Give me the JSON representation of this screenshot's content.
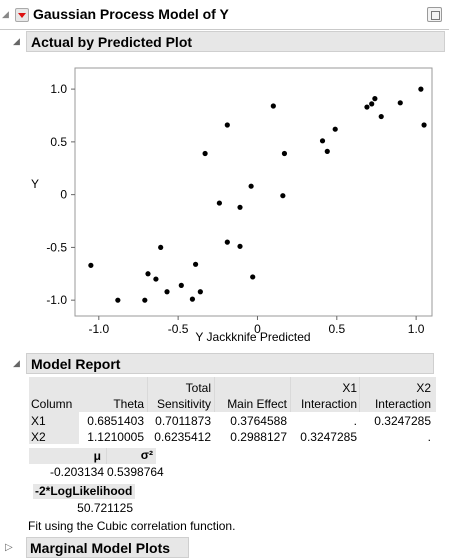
{
  "window": {
    "title": "Gaussian Process Model of Y"
  },
  "sections": {
    "actual_plot": "Actual by Predicted Plot",
    "model_report": "Model Report",
    "marginal": "Marginal Model Plots"
  },
  "chart_data": {
    "type": "scatter",
    "title": "",
    "xlabel": "Y Jackknife Predicted",
    "ylabel": "Y",
    "xlim": [
      -1.15,
      1.1
    ],
    "ylim": [
      -1.15,
      1.2
    ],
    "x_ticks": [
      "-1.0",
      "-0.5",
      "0",
      "0.5",
      "1.0"
    ],
    "y_ticks": [
      "1.0",
      "0.5",
      "0",
      "-0.5",
      "-1.0"
    ],
    "x_tick_values": [
      -1.0,
      -0.5,
      0,
      0.5,
      1.0
    ],
    "y_tick_values": [
      1.0,
      0.5,
      0,
      -0.5,
      -1.0
    ],
    "points": [
      [
        -1.05,
        -0.67
      ],
      [
        -0.88,
        -1.0
      ],
      [
        -0.71,
        -1.0
      ],
      [
        -0.69,
        -0.75
      ],
      [
        -0.64,
        -0.8
      ],
      [
        -0.61,
        -0.5
      ],
      [
        -0.57,
        -0.92
      ],
      [
        -0.48,
        -0.86
      ],
      [
        -0.41,
        -0.99
      ],
      [
        -0.39,
        -0.66
      ],
      [
        -0.36,
        -0.92
      ],
      [
        -0.33,
        0.39
      ],
      [
        -0.24,
        -0.08
      ],
      [
        -0.19,
        0.66
      ],
      [
        -0.19,
        -0.45
      ],
      [
        -0.11,
        -0.12
      ],
      [
        -0.11,
        -0.49
      ],
      [
        -0.04,
        0.08
      ],
      [
        -0.03,
        -0.78
      ],
      [
        0.1,
        0.84
      ],
      [
        0.16,
        -0.01
      ],
      [
        0.17,
        0.39
      ],
      [
        0.41,
        0.51
      ],
      [
        0.44,
        0.41
      ],
      [
        0.49,
        0.62
      ],
      [
        0.69,
        0.83
      ],
      [
        0.72,
        0.86
      ],
      [
        0.74,
        0.91
      ],
      [
        0.78,
        0.74
      ],
      [
        0.9,
        0.87
      ],
      [
        1.03,
        1.0
      ],
      [
        1.05,
        0.66
      ]
    ]
  },
  "model_report": {
    "headers": {
      "column": "Column",
      "theta": "Theta",
      "total_sens_1": "Total",
      "total_sens_2": "Sensitivity",
      "main_effect": "Main Effect",
      "x1_int_1": "X1",
      "x1_int_2": "Interaction",
      "x2_int_1": "X2",
      "x2_int_2": "Interaction"
    },
    "rows": [
      {
        "column": "X1",
        "theta": "0.6851403",
        "total": "0.7011873",
        "main": "0.3764588",
        "x1": ".",
        "x2": "0.3247285"
      },
      {
        "column": "X2",
        "theta": "1.1210005",
        "total": "0.6235412",
        "main": "0.2988127",
        "x1": "0.3247285",
        "x2": "."
      }
    ],
    "mu_label": "μ",
    "sigma_label": "σ²",
    "mu_value": "-0.203134",
    "sigma_value": "0.5398764",
    "loglik_label": "-2*LogLikelihood",
    "loglik_value": "50.721125",
    "note": "Fit using the Cubic correlation function."
  }
}
